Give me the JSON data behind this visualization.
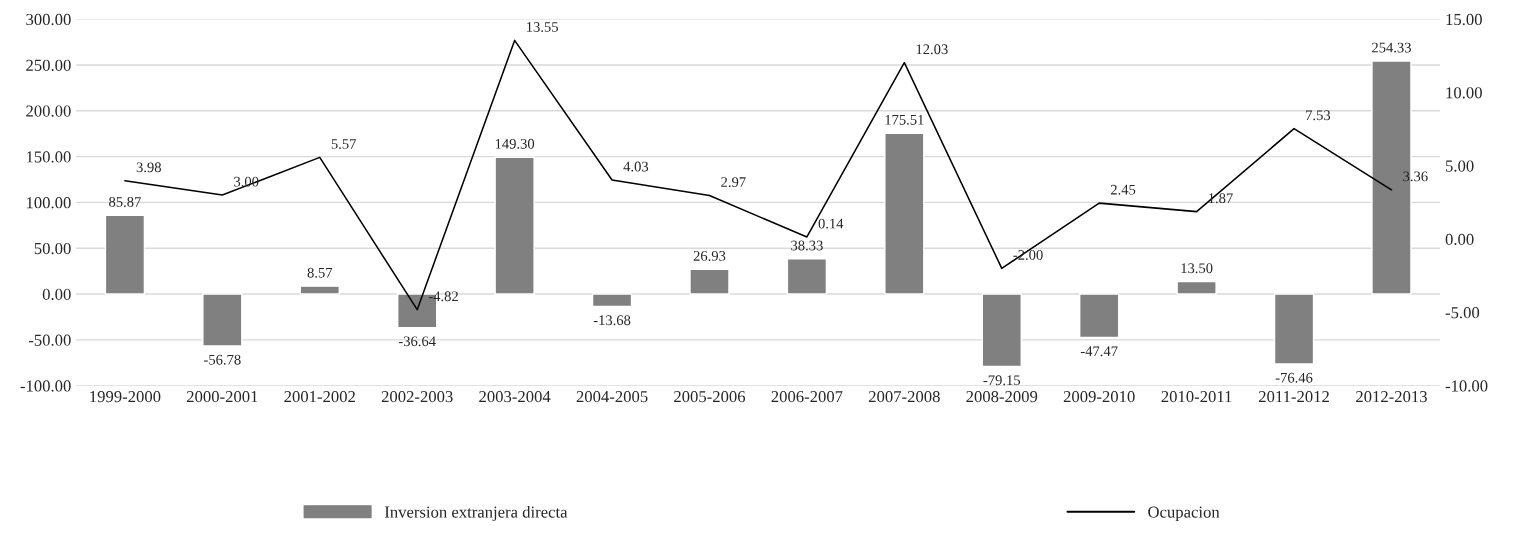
{
  "chart_data": {
    "type": "bar",
    "categories": [
      "1999-2000",
      "2000-2001",
      "2001-2002",
      "2002-2003",
      "2003-2004",
      "2004-2005",
      "2005-2006",
      "2006-2007",
      "2007-2008",
      "2008-2009",
      "2009-2010",
      "2010-2011",
      "2011-2012",
      "2012-2013"
    ],
    "series": [
      {
        "name": "Inversion extranjera directa",
        "color": "#808080",
        "values": [
          85.87,
          -56.78,
          8.57,
          -36.64,
          149.3,
          -13.68,
          26.93,
          38.33,
          175.51,
          -79.15,
          -47.47,
          13.5,
          -76.46,
          254.33
        ],
        "value_labels": [
          "85.87",
          "-56.78",
          "8.57",
          "-36.64",
          "149.30",
          "-13.68",
          "26.93",
          "38.33",
          "175.51",
          "-79.15",
          "-47.47",
          "13.50",
          "-76.46",
          "254.33"
        ]
      },
      {
        "name": "Ocupacion",
        "type": "line",
        "axis": "y2",
        "color": "#000000",
        "values": [
          3.98,
          3.0,
          5.57,
          -4.82,
          13.55,
          4.03,
          2.97,
          0.14,
          12.03,
          -2.0,
          2.45,
          1.87,
          7.53,
          3.36
        ],
        "value_labels": [
          "3.98",
          "3.00",
          "5.57",
          "-4.82",
          "13.55",
          "4.03",
          "2.97",
          "0.14",
          "12.03",
          "-2.00",
          "2.45",
          "1.87",
          "7.53",
          "3.36"
        ]
      }
    ],
    "ylim": [
      -100,
      300
    ],
    "yticks": [
      {
        "value": -100,
        "label": "-100.00"
      },
      {
        "value": -50,
        "label": "-50.00"
      },
      {
        "value": 0,
        "label": "0.00"
      },
      {
        "value": 50,
        "label": "50.00"
      },
      {
        "value": 100,
        "label": "100.00"
      },
      {
        "value": 150,
        "label": "150.00"
      },
      {
        "value": 200,
        "label": "200.00"
      },
      {
        "value": 250,
        "label": "250.00"
      },
      {
        "value": 300,
        "label": "300.00"
      }
    ],
    "y2lim": [
      -10,
      15
    ],
    "y2ticks": [
      {
        "value": -10,
        "label": "-10.00"
      },
      {
        "value": -5,
        "label": "-5.00"
      },
      {
        "value": 0,
        "label": "0.00"
      },
      {
        "value": 5,
        "label": "5.00"
      },
      {
        "value": 10,
        "label": "10.00"
      },
      {
        "value": 15,
        "label": "15.00"
      }
    ],
    "grid": "y",
    "legend": "bottom",
    "line_style": "solid",
    "marker": "none"
  }
}
